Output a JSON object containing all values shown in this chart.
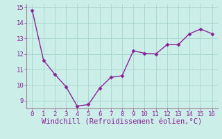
{
  "x": [
    0,
    1,
    2,
    3,
    4,
    5,
    6,
    7,
    8,
    9,
    10,
    11,
    12,
    13,
    14,
    15,
    16
  ],
  "y": [
    14.8,
    11.6,
    10.7,
    9.9,
    8.65,
    8.75,
    9.8,
    10.5,
    10.6,
    12.2,
    12.05,
    12.0,
    12.6,
    12.6,
    13.3,
    13.6,
    13.3
  ],
  "line_color": "#882299",
  "marker": "D",
  "marker_size": 2.5,
  "background_color": "#cceee8",
  "grid_color": "#aad8d0",
  "xlabel": "Windchill (Refroidissement éolien,°C)",
  "xlabel_color": "#882299",
  "xlabel_fontsize": 7.5,
  "ylim": [
    8.5,
    15.2
  ],
  "xlim": [
    -0.5,
    16.5
  ],
  "yticks": [
    9,
    10,
    11,
    12,
    13,
    14,
    15
  ],
  "xticks": [
    0,
    1,
    2,
    3,
    4,
    5,
    6,
    7,
    8,
    9,
    10,
    11,
    12,
    13,
    14,
    15,
    16
  ],
  "tick_color": "#882299",
  "tick_fontsize": 6.5,
  "line_width": 1.0,
  "spine_color": "#998899"
}
